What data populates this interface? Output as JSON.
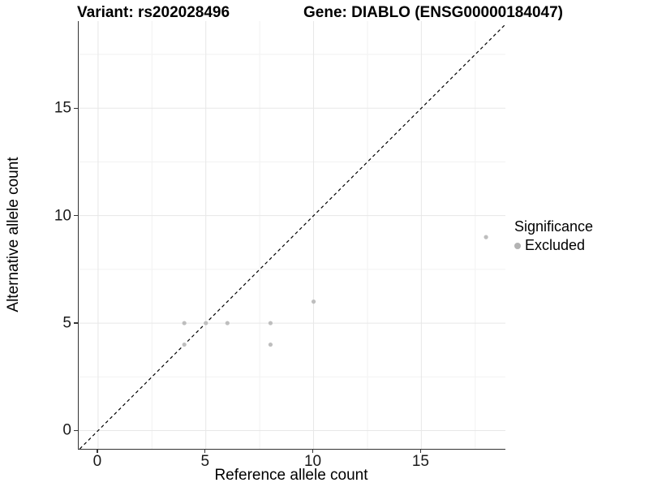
{
  "chart_data": {
    "type": "scatter",
    "title_left": "Variant: rs202028496",
    "title_right": "Gene: DIABLO (ENSG00000184047)",
    "xlabel": "Reference allele count",
    "ylabel": "Alternative allele count",
    "xlim": [
      -0.9,
      18.9
    ],
    "ylim": [
      -0.85,
      19.05
    ],
    "xticks": [
      0,
      5,
      10,
      15
    ],
    "yticks": [
      0,
      5,
      10,
      15
    ],
    "minor_xticks": [
      2.5,
      7.5,
      12.5,
      17.5
    ],
    "minor_yticks": [
      2.5,
      7.5,
      12.5,
      17.5
    ],
    "grid": true,
    "identity_line": {
      "slope": 1,
      "intercept": 0,
      "linetype": "dashed",
      "color": "#000000"
    },
    "series": [
      {
        "name": "Excluded",
        "color": "#bebebe",
        "points": [
          [
            4,
            4
          ],
          [
            4,
            5
          ],
          [
            5,
            5
          ],
          [
            6,
            5
          ],
          [
            8,
            4
          ],
          [
            8,
            5
          ],
          [
            10,
            6
          ],
          [
            18,
            9
          ]
        ]
      }
    ],
    "legend": {
      "title": "Significance",
      "position": "right",
      "items": [
        {
          "label": "Excluded",
          "color": "#b3b3b3"
        }
      ]
    },
    "colors": {
      "grid_major": "#e7e7e7",
      "grid_minor": "#f2f2f2",
      "axis_line": "#333333",
      "tick_text": "#1a1a1a",
      "point": "#bebebe",
      "identity": "#000000"
    }
  }
}
